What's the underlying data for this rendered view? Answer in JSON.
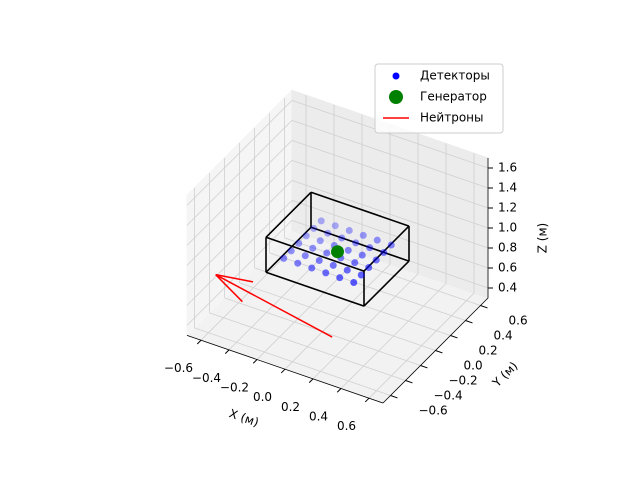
{
  "chart_data": {
    "type": "scatter3d",
    "xlabel": "X (м)",
    "ylabel": "Y (м)",
    "zlabel": "Z (м)",
    "xlim": [
      -0.7,
      0.7
    ],
    "ylim": [
      -0.7,
      0.7
    ],
    "zlim": [
      0.3,
      1.7
    ],
    "xticks": [
      {
        "value": -0.6,
        "label": "−0.6"
      },
      {
        "value": -0.4,
        "label": "−0.4"
      },
      {
        "value": -0.2,
        "label": "−0.2"
      },
      {
        "value": 0,
        "label": "0.0"
      },
      0.2,
      0.4,
      0.6
    ],
    "yticks": [
      {
        "value": -0.6,
        "label": "−0.6"
      },
      {
        "value": -0.4,
        "label": "−0.4"
      },
      {
        "value": -0.2,
        "label": "−0.2"
      },
      {
        "value": 0,
        "label": "0.0"
      },
      0.2,
      0.4,
      0.6
    ],
    "zticks": [
      0.4,
      0.6,
      0.8,
      {
        "value": 1,
        "label": "1.0"
      },
      1.2,
      1.4,
      1.6
    ],
    "legend": "upper right",
    "grid": true,
    "series": [
      {
        "name": "Детекторы",
        "type": "scatter",
        "color": "#0000ff",
        "x": [
          -0.25,
          -0.25,
          -0.25,
          -0.25,
          -0.25,
          -0.25,
          -0.15,
          -0.15,
          -0.15,
          -0.15,
          -0.15,
          -0.15,
          -0.05,
          -0.05,
          -0.05,
          -0.05,
          -0.05,
          -0.05,
          0.05,
          0.05,
          0.05,
          0.05,
          0.05,
          0.05,
          0.15,
          0.15,
          0.15,
          0.15,
          0.15,
          0.15,
          0.25,
          0.25,
          0.25,
          0.25,
          0.25,
          0.25
        ],
        "y": [
          -0.25,
          -0.15,
          -0.05,
          0.05,
          0.15,
          0.25,
          -0.25,
          -0.15,
          -0.05,
          0.05,
          0.15,
          0.25,
          -0.25,
          -0.15,
          -0.05,
          0.05,
          0.15,
          0.25,
          -0.25,
          -0.15,
          -0.05,
          0.05,
          0.15,
          0.25,
          -0.25,
          -0.15,
          -0.05,
          0.05,
          0.15,
          0.25,
          -0.25,
          -0.15,
          -0.05,
          0.05,
          0.15,
          0.25
        ],
        "z": [
          0.95,
          0.95,
          0.95,
          0.95,
          0.95,
          0.95,
          0.95,
          0.95,
          0.95,
          0.95,
          0.95,
          0.95,
          0.95,
          0.95,
          0.95,
          0.95,
          0.95,
          0.95,
          0.95,
          0.95,
          0.95,
          0.95,
          0.95,
          0.95,
          0.95,
          0.95,
          0.95,
          0.95,
          0.95,
          0.95,
          0.95,
          0.95,
          0.95,
          0.95,
          0.95,
          0.95
        ]
      },
      {
        "name": "Генератор",
        "type": "scatter",
        "color": "#008000",
        "x": [
          0
        ],
        "y": [
          0
        ],
        "z": [
          0.95
        ]
      },
      {
        "name": "Нейтроны",
        "type": "arrow",
        "color": "#ff0000",
        "x": [
          0.08,
          -0.87
        ],
        "y": [
          -0.22,
          0
        ],
        "z": [
          0.3,
          0.3
        ]
      }
    ],
    "box": {
      "color": "#000000",
      "x": [
        -0.35,
        0.35
      ],
      "y": [
        -0.3,
        0.3
      ],
      "z": [
        0.8,
        1.15
      ]
    }
  }
}
